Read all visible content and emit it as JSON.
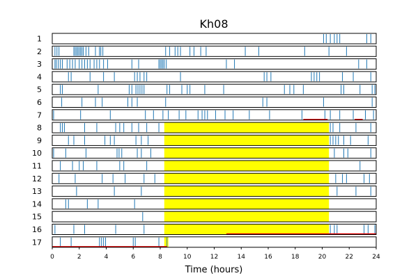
{
  "chart_data": {
    "type": "raster",
    "title": "Kh08",
    "xlabel": "Time (hours)",
    "ylabel": "",
    "xlim": [
      0,
      24
    ],
    "xticks": [
      "0",
      "2",
      "4",
      "6",
      "8",
      "10",
      "12",
      "14",
      "16",
      "18",
      "20",
      "22",
      "24"
    ],
    "row_labels": [
      "1",
      "2",
      "3",
      "4",
      "5",
      "6",
      "7",
      "8",
      "9",
      "10",
      "11",
      "12",
      "13",
      "14",
      "15",
      "16",
      "17"
    ],
    "colors": {
      "event": "#1f77b4",
      "highlight": "#ffff00",
      "red_segment": "#dd0000",
      "frame": "#000000"
    },
    "rows": [
      {
        "label": "1",
        "events": [
          20.1,
          20.3,
          20.6,
          20.9,
          21.1,
          21.3,
          23.3,
          23.6
        ],
        "highlight": null,
        "red": []
      },
      {
        "label": "2",
        "events": [
          0.2,
          0.35,
          0.5,
          1.6,
          1.7,
          1.8,
          1.9,
          2.0,
          2.1,
          2.2,
          2.3,
          2.5,
          2.7,
          3.2,
          3.5,
          3.6,
          3.75,
          8.4,
          8.7,
          9.1,
          9.3,
          9.5,
          10.2,
          10.5,
          11.0,
          11.4,
          14.3,
          15.3,
          18.7,
          20.5,
          21.8
        ],
        "highlight": null,
        "red": []
      },
      {
        "label": "3",
        "events": [
          0.2,
          0.3,
          0.45,
          0.6,
          0.75,
          1.1,
          1.3,
          1.5,
          1.7,
          2.0,
          2.2,
          2.4,
          2.6,
          2.8,
          3.1,
          3.3,
          3.5,
          3.8,
          4.1,
          5.9,
          6.4,
          7.9,
          8.0,
          8.1,
          8.2,
          8.3,
          8.45,
          12.9,
          13.5,
          22.7,
          23.3
        ],
        "highlight": null,
        "red": []
      },
      {
        "label": "4",
        "events": [
          1.2,
          1.4,
          2.8,
          3.8,
          4.6,
          6.1,
          6.3,
          6.5,
          6.8,
          7.0,
          9.5,
          15.7,
          15.9,
          16.2,
          19.2,
          19.4,
          19.6,
          19.8,
          21.5,
          22.3,
          23.6
        ],
        "highlight": null,
        "red": []
      },
      {
        "label": "5",
        "events": [
          0.6,
          0.75,
          3.4,
          5.7,
          5.9,
          6.2,
          6.35,
          6.5,
          6.65,
          6.8,
          8.5,
          8.7,
          9.6,
          10.0,
          10.2,
          11.3,
          12.7,
          17.2,
          17.6,
          17.9,
          18.6,
          21.4,
          21.6,
          22.8,
          23.7,
          23.9
        ],
        "highlight": null,
        "red": []
      },
      {
        "label": "6",
        "events": [
          0.7,
          2.2,
          3.2,
          3.7,
          5.6,
          5.9,
          6.3,
          8.4,
          15.6,
          15.9,
          20.1,
          23.7
        ],
        "highlight": null,
        "red": []
      },
      {
        "label": "7",
        "events": [
          0.1,
          2.1,
          4.3,
          6.9,
          7.5,
          8.2,
          8.6,
          9.4,
          9.9,
          10.8,
          11.1,
          11.3,
          11.5,
          12.1,
          12.8,
          13.4,
          14.6,
          16.1,
          18.5,
          20.2,
          20.6,
          21.3,
          22.3,
          23.2,
          23.8
        ],
        "highlight": null,
        "red": [
          [
            18.6,
            20.4
          ],
          [
            22.4,
            23.0
          ]
        ]
      },
      {
        "label": "8",
        "events": [
          0.6,
          0.75,
          0.9,
          2.4,
          3.3,
          4.7,
          5.0,
          5.3,
          5.9,
          6.4,
          7.0,
          7.9,
          20.6,
          20.8,
          21.3,
          22.5,
          23.6
        ],
        "highlight": [
          8.3,
          20.5
        ],
        "red": []
      },
      {
        "label": "9",
        "events": [
          1.2,
          1.6,
          2.4,
          3.9,
          4.3,
          4.6,
          6.2,
          6.6,
          7.1,
          20.6,
          20.8,
          21.0,
          21.2,
          21.6,
          22.1,
          23.4
        ],
        "highlight": [
          8.3,
          20.5
        ],
        "red": []
      },
      {
        "label": "10",
        "events": [
          0.1,
          1.0,
          2.5,
          4.8,
          4.95,
          5.15,
          6.3,
          6.6,
          7.3,
          20.9,
          21.6,
          21.9,
          23.6
        ],
        "highlight": [
          8.3,
          20.5
        ],
        "red": []
      },
      {
        "label": "11",
        "events": [
          0.6,
          1.5,
          2.0,
          2.3,
          3.3,
          5.0,
          5.3,
          7.0,
          22.8
        ],
        "highlight": [
          8.3,
          20.5
        ],
        "red": []
      },
      {
        "label": "12",
        "events": [
          0.5,
          1.7,
          3.7,
          4.5,
          5.4,
          6.8,
          7.6,
          21.0,
          21.5,
          21.8,
          23.1,
          23.5
        ],
        "highlight": [
          8.3,
          20.5
        ],
        "red": []
      },
      {
        "label": "13",
        "events": [
          1.8,
          4.6,
          6.6,
          21.1,
          22.5,
          23.6
        ],
        "highlight": [
          8.3,
          20.5
        ],
        "red": []
      },
      {
        "label": "14",
        "events": [
          1.0,
          1.2,
          2.6,
          3.4,
          6.1
        ],
        "highlight": [
          8.3,
          20.5
        ],
        "red": []
      },
      {
        "label": "15",
        "events": [
          6.7
        ],
        "highlight": [
          8.3,
          20.5
        ],
        "red": []
      },
      {
        "label": "16",
        "events": [
          0.2,
          1.6,
          2.4,
          4.7,
          6.8,
          20.6,
          20.9,
          21.1,
          23.1,
          23.4,
          23.9
        ],
        "highlight": [
          8.3,
          20.5
        ],
        "red": [
          [
            12.9,
            24.0
          ]
        ]
      },
      {
        "label": "17",
        "events": [
          0.6,
          1.4,
          3.5,
          3.65,
          3.8,
          3.95,
          6.0,
          6.15,
          7.9,
          8.5
        ],
        "highlight": [
          8.3,
          8.6
        ],
        "red": [
          [
            0.0,
            8.5
          ]
        ]
      }
    ]
  }
}
